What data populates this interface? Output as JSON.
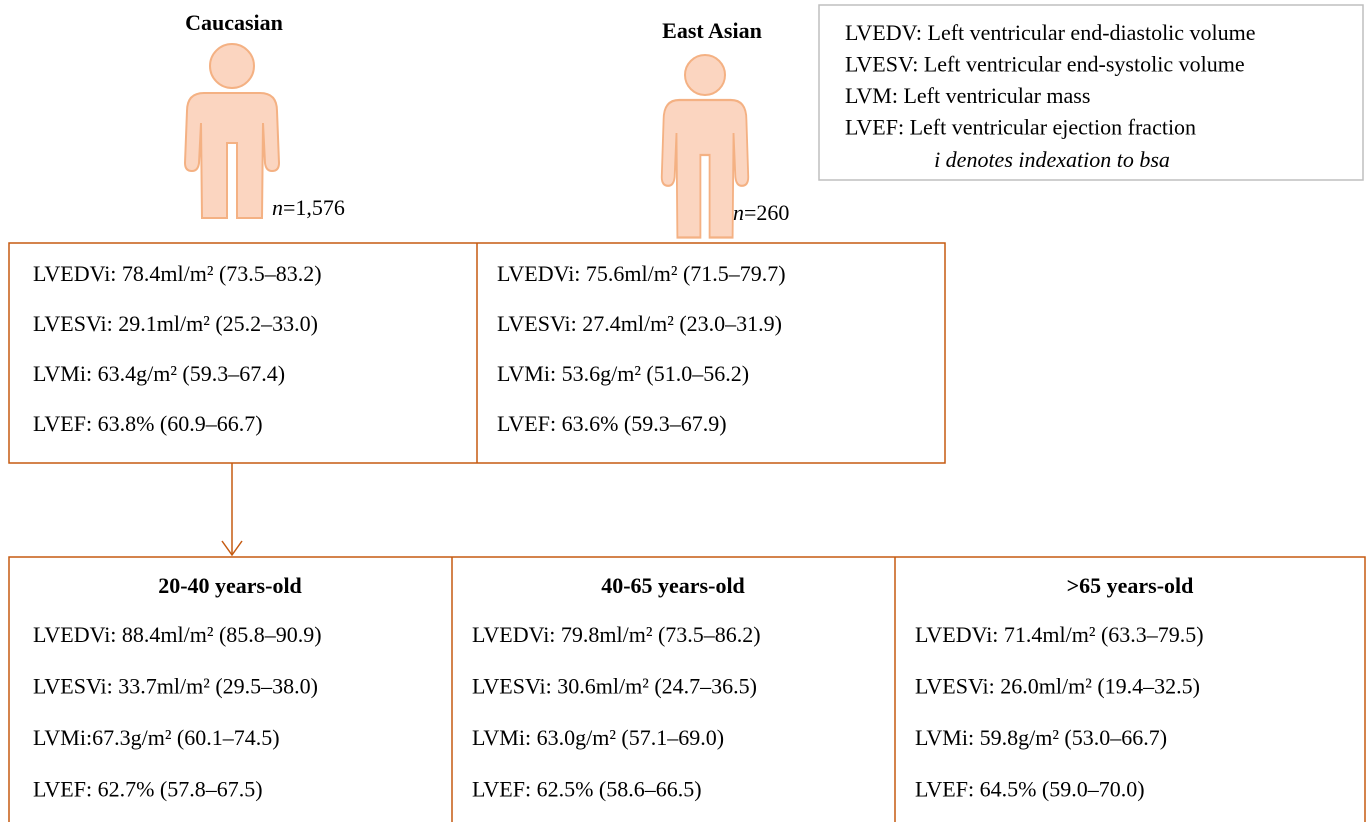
{
  "groups": [
    {
      "title": "Caucasian",
      "n_symbol": "n",
      "n_value": "=1,576"
    },
    {
      "title": "East Asian",
      "n_symbol": "n",
      "n_value": "=260"
    }
  ],
  "legend": {
    "lines": [
      "LVEDV: Left ventricular end-diastolic volume",
      "LVESV: Left ventricular end-systolic volume",
      "LVM: Left ventricular mass",
      "LVEF: Left ventricular ejection fraction"
    ],
    "note": "i denotes indexation to bsa"
  },
  "ethnicity_boxes": [
    {
      "lines": [
        "LVEDVi: 78.4ml/m² (73.5–83.2)",
        "LVESVi: 29.1ml/m² (25.2–33.0)",
        "LVMi: 63.4g/m² (59.3–67.4)",
        "LVEF: 63.8% (60.9–66.7)"
      ]
    },
    {
      "lines": [
        "LVEDVi: 75.6ml/m² (71.5–79.7)",
        "LVESVi: 27.4ml/m² (23.0–31.9)",
        "LVMi: 53.6g/m² (51.0–56.2)",
        "LVEF: 63.6% (59.3–67.9)"
      ]
    }
  ],
  "age_boxes": [
    {
      "title": "20-40 years-old",
      "lines": [
        "LVEDVi: 88.4ml/m² (85.8–90.9)",
        "LVESVi: 33.7ml/m² (29.5–38.0)",
        "LVMi:67.3g/m² (60.1–74.5)",
        "LVEF: 62.7% (57.8–67.5)"
      ]
    },
    {
      "title": "40-65 years-old",
      "lines": [
        "LVEDVi: 79.8ml/m² (73.5–86.2)",
        "LVESVi: 30.6ml/m² (24.7–36.5)",
        "LVMi: 63.0g/m² (57.1–69.0)",
        "LVEF: 62.5% (58.6–66.5)"
      ]
    },
    {
      "title": ">65 years-old",
      "lines": [
        "LVEDVi: 71.4ml/m² (63.3–79.5)",
        "LVESVi: 26.0ml/m² (19.4–32.5)",
        "LVMi: 59.8g/m² (53.0–66.7)",
        "LVEF: 64.5% (59.0–70.0)"
      ]
    }
  ]
}
